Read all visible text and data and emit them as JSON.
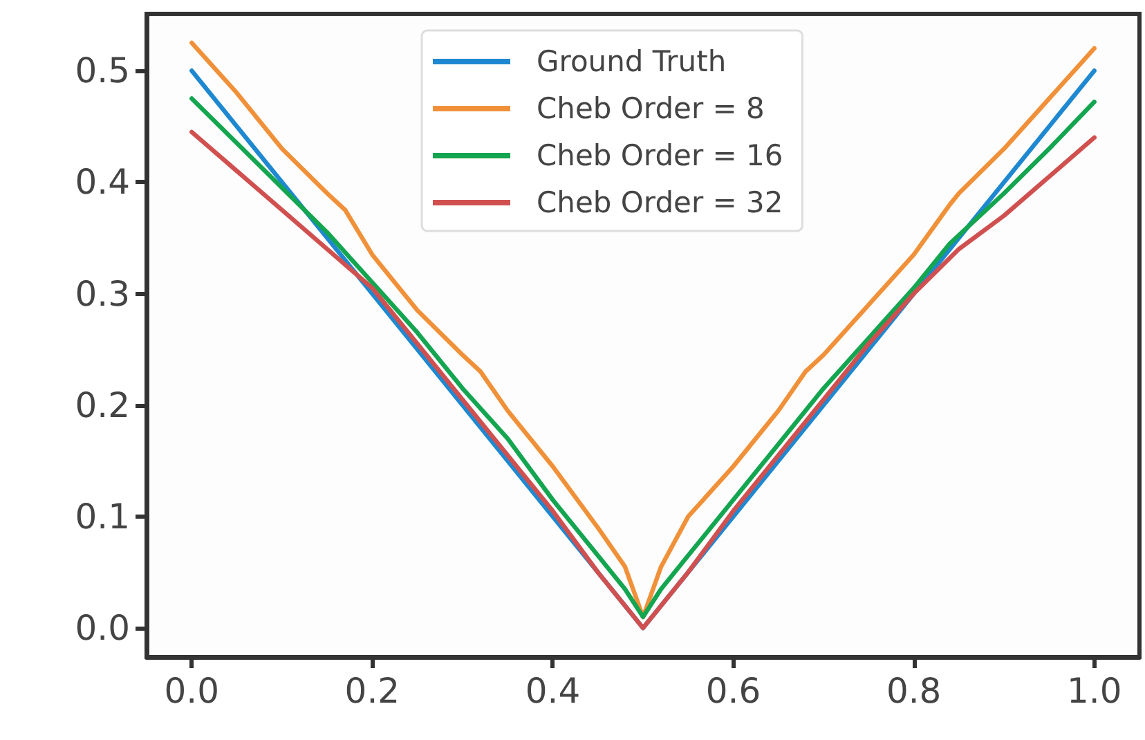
{
  "chart_data": {
    "type": "line",
    "xlim": [
      -0.05,
      1.05
    ],
    "ylim": [
      -0.026,
      0.551
    ],
    "xticks": [
      {
        "value": 0,
        "label": "0.0"
      },
      0.2,
      0.4,
      0.6,
      0.8,
      {
        "value": 1,
        "label": "1.0"
      }
    ],
    "yticks": [
      {
        "value": 0,
        "label": "0.0"
      },
      0.1,
      0.2,
      0.3,
      0.4,
      0.5
    ],
    "grid": false,
    "legend": "top",
    "marker": "none",
    "line_style": "solid",
    "series": [
      {
        "name": "Ground Truth",
        "color": "#1e88d0",
        "x": [
          0,
          0.5,
          1
        ],
        "values": [
          0.5,
          0,
          0.5
        ]
      },
      {
        "name": "Cheb Order = 8",
        "color": "#f0913a",
        "x": [
          0,
          0.05,
          0.1,
          0.15,
          0.17,
          0.2,
          0.25,
          0.3,
          0.32,
          0.35,
          0.4,
          0.45,
          0.48,
          0.5,
          0.52,
          0.55,
          0.6,
          0.65,
          0.68,
          0.7,
          0.75,
          0.8,
          0.84,
          0.85,
          0.9,
          0.95,
          1
        ],
        "values": [
          0.525,
          0.48,
          0.43,
          0.39,
          0.375,
          0.335,
          0.285,
          0.245,
          0.23,
          0.195,
          0.145,
          0.09,
          0.055,
          0.01,
          0.055,
          0.1,
          0.145,
          0.195,
          0.23,
          0.245,
          0.29,
          0.335,
          0.38,
          0.39,
          0.43,
          0.475,
          0.52
        ]
      },
      {
        "name": "Cheb Order = 16",
        "color": "#14a550",
        "x": [
          0,
          0.05,
          0.1,
          0.15,
          0.2,
          0.25,
          0.3,
          0.35,
          0.4,
          0.45,
          0.48,
          0.5,
          0.52,
          0.55,
          0.6,
          0.65,
          0.7,
          0.75,
          0.8,
          0.84,
          0.9,
          0.95,
          1
        ],
        "values": [
          0.475,
          0.435,
          0.395,
          0.355,
          0.31,
          0.265,
          0.215,
          0.17,
          0.115,
          0.065,
          0.035,
          0.01,
          0.035,
          0.065,
          0.115,
          0.165,
          0.215,
          0.26,
          0.305,
          0.345,
          0.39,
          0.43,
          0.472
        ]
      },
      {
        "name": "Cheb Order = 32",
        "color": "#d05050",
        "x": [
          0,
          0.05,
          0.1,
          0.15,
          0.2,
          0.25,
          0.3,
          0.35,
          0.4,
          0.45,
          0.5,
          0.55,
          0.6,
          0.65,
          0.7,
          0.75,
          0.8,
          0.85,
          0.9,
          0.95,
          1
        ],
        "values": [
          0.445,
          0.41,
          0.375,
          0.34,
          0.305,
          0.255,
          0.205,
          0.155,
          0.105,
          0.05,
          0,
          0.05,
          0.105,
          0.155,
          0.205,
          0.255,
          0.3,
          0.34,
          0.37,
          0.405,
          0.44
        ]
      }
    ]
  }
}
